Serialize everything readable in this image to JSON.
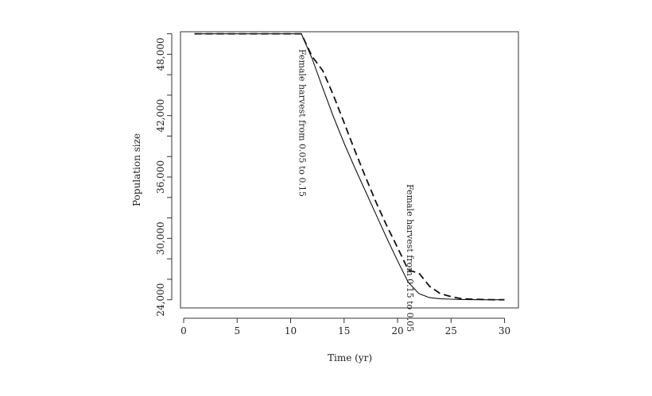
{
  "chart_data": {
    "type": "line",
    "xlabel": "Time (yr)",
    "ylabel": "Population size",
    "xlim": [
      0,
      31
    ],
    "ylim": [
      23200,
      50200
    ],
    "x_ticks": [
      0,
      5,
      10,
      15,
      20,
      25,
      30
    ],
    "x_tick_labels": [
      "0",
      "5",
      "10",
      "15",
      "20",
      "25",
      "30"
    ],
    "y_ticks": [
      24000,
      30000,
      36000,
      42000,
      48000
    ],
    "y_tick_labels": [
      "24,000",
      "30,000",
      "36,000",
      "42,000",
      "48,000"
    ],
    "y_minor_ticks": [
      26000,
      28000,
      32000,
      34000,
      38000,
      40000,
      44000,
      46000,
      50000
    ],
    "grid": false,
    "legend": "none",
    "series": [
      {
        "style": "solid",
        "x": [
          1,
          2,
          3,
          4,
          5,
          6,
          7,
          8,
          9,
          10,
          11,
          12,
          13,
          14,
          15,
          16,
          17,
          18,
          19,
          20,
          21,
          22,
          23,
          24,
          25,
          26,
          27,
          28,
          29,
          30
        ],
        "y": [
          50000,
          50000,
          50000,
          50000,
          50000,
          50000,
          50000,
          50000,
          50000,
          50000,
          50000,
          47600,
          44700,
          41900,
          39300,
          36900,
          34600,
          32300,
          30000,
          27800,
          25700,
          24600,
          24200,
          24100,
          24050,
          24020,
          24010,
          24000,
          24000,
          24000
        ]
      },
      {
        "style": "dashed",
        "x": [
          1,
          2,
          3,
          4,
          5,
          6,
          7,
          8,
          9,
          10,
          11,
          12,
          13,
          14,
          15,
          16,
          17,
          18,
          19,
          20,
          21,
          22,
          23,
          24,
          25,
          26,
          27,
          28,
          29,
          30
        ],
        "y": [
          50000,
          50000,
          50000,
          50000,
          50000,
          50000,
          50000,
          50000,
          50000,
          50000,
          50000,
          47800,
          46400,
          44000,
          41300,
          38600,
          36000,
          33500,
          31200,
          29100,
          26900,
          26600,
          25300,
          24600,
          24300,
          24100,
          24050,
          24020,
          24000,
          24000
        ]
      }
    ],
    "annotations": [
      {
        "text": "Female harvest from 0.05 to 0.15",
        "x": 10.8,
        "y": 48500
      },
      {
        "text": "Female harvest from 0.15 to 0.05",
        "x": 20.9,
        "y": 35300
      }
    ]
  }
}
